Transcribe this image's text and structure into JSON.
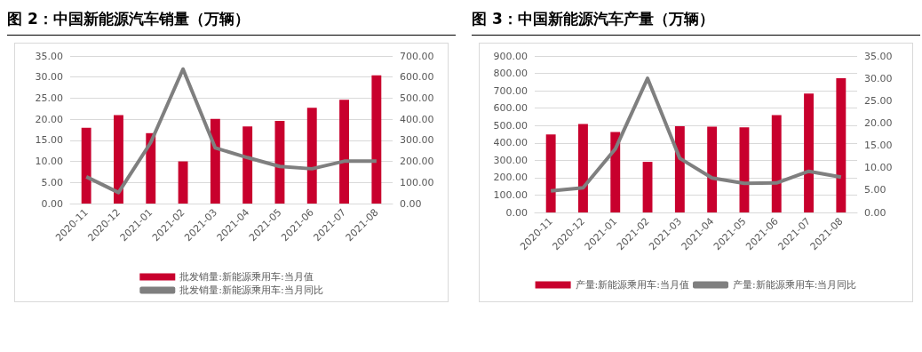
{
  "chart_data": [
    {
      "type": "bar",
      "title": "图 2：中国新能源汽车销量（万辆）",
      "categories": [
        "2020-11",
        "2020-12",
        "2021-01",
        "2021-02",
        "2021-03",
        "2021-04",
        "2021-05",
        "2021-06",
        "2021-07",
        "2021-08"
      ],
      "series": [
        {
          "name": "批发销量:新能源乘用车:当月值",
          "color": "#c8002d",
          "values": [
            18.0,
            21.0,
            16.7,
            10.0,
            20.1,
            18.3,
            19.6,
            22.7,
            24.6,
            30.4
          ]
        },
        {
          "name": "批发销量:新能源乘用车:当月同比",
          "type": "line",
          "axis": "y2",
          "color": "#7f7f7f",
          "values": [
            127,
            52,
            290,
            638,
            264,
            218,
            176,
            165,
            201,
            201
          ]
        }
      ],
      "ylim": [
        0,
        35
      ],
      "yticks": [
        {
          "value": 0,
          "label": "0.00"
        },
        {
          "value": 5,
          "label": "5.00"
        },
        {
          "value": 10,
          "label": "10.00"
        },
        {
          "value": 15,
          "label": "15.00"
        },
        {
          "value": 20,
          "label": "20.00"
        },
        {
          "value": 25,
          "label": "25.00"
        },
        {
          "value": 30,
          "label": "30.00"
        },
        {
          "value": 35,
          "label": "35.00"
        }
      ],
      "y2lim": [
        0,
        700
      ],
      "y2ticks": [
        {
          "value": 0,
          "label": "0.00"
        },
        {
          "value": 100,
          "label": "100.00"
        },
        {
          "value": 200,
          "label": "200.00"
        },
        {
          "value": 300,
          "label": "300.00"
        },
        {
          "value": 400,
          "label": "400.00"
        },
        {
          "value": 500,
          "label": "500.00"
        },
        {
          "value": 600,
          "label": "600.00"
        },
        {
          "value": 700,
          "label": "700.00"
        }
      ],
      "grid": "y",
      "legend": "bottom",
      "marker": "none"
    },
    {
      "type": "bar",
      "title": "图 3：中国新能源汽车产量（万辆）",
      "categories": [
        "2020-11",
        "2020-12",
        "2021-01",
        "2021-02",
        "2021-03",
        "2021-04",
        "2021-05",
        "2021-06",
        "2021-07",
        "2021-08"
      ],
      "series": [
        {
          "name": "产量:新能源乘用车:当月值",
          "color": "#c8002d",
          "values": [
            449,
            509,
            463,
            291,
            496,
            493,
            489,
            560,
            684,
            772
          ]
        },
        {
          "name": "产量:新能源乘用车:当月同比",
          "type": "line",
          "axis": "y2",
          "color": "#7f7f7f",
          "values": [
            4.8,
            5.5,
            14.2,
            30.0,
            12.1,
            7.7,
            6.5,
            6.6,
            9.2,
            7.9
          ]
        }
      ],
      "ylim": [
        0,
        900
      ],
      "yticks": [
        {
          "value": 0,
          "label": "0.00"
        },
        {
          "value": 100,
          "label": "100.00"
        },
        {
          "value": 200,
          "label": "200.00"
        },
        {
          "value": 300,
          "label": "300.00"
        },
        {
          "value": 400,
          "label": "400.00"
        },
        {
          "value": 500,
          "label": "500.00"
        },
        {
          "value": 600,
          "label": "600.00"
        },
        {
          "value": 700,
          "label": "700.00"
        },
        {
          "value": 800,
          "label": "800.00"
        },
        {
          "value": 900,
          "label": "900.00"
        }
      ],
      "y2lim": [
        0,
        35
      ],
      "y2ticks": [
        {
          "value": 0,
          "label": "0.00"
        },
        {
          "value": 5,
          "label": "5.00"
        },
        {
          "value": 10,
          "label": "10.00"
        },
        {
          "value": 15,
          "label": "15.00"
        },
        {
          "value": 20,
          "label": "20.00"
        },
        {
          "value": 25,
          "label": "25.00"
        },
        {
          "value": 30,
          "label": "30.00"
        },
        {
          "value": 35,
          "label": "35.00"
        }
      ],
      "grid": "y",
      "legend": "bottom",
      "marker": "none"
    }
  ]
}
